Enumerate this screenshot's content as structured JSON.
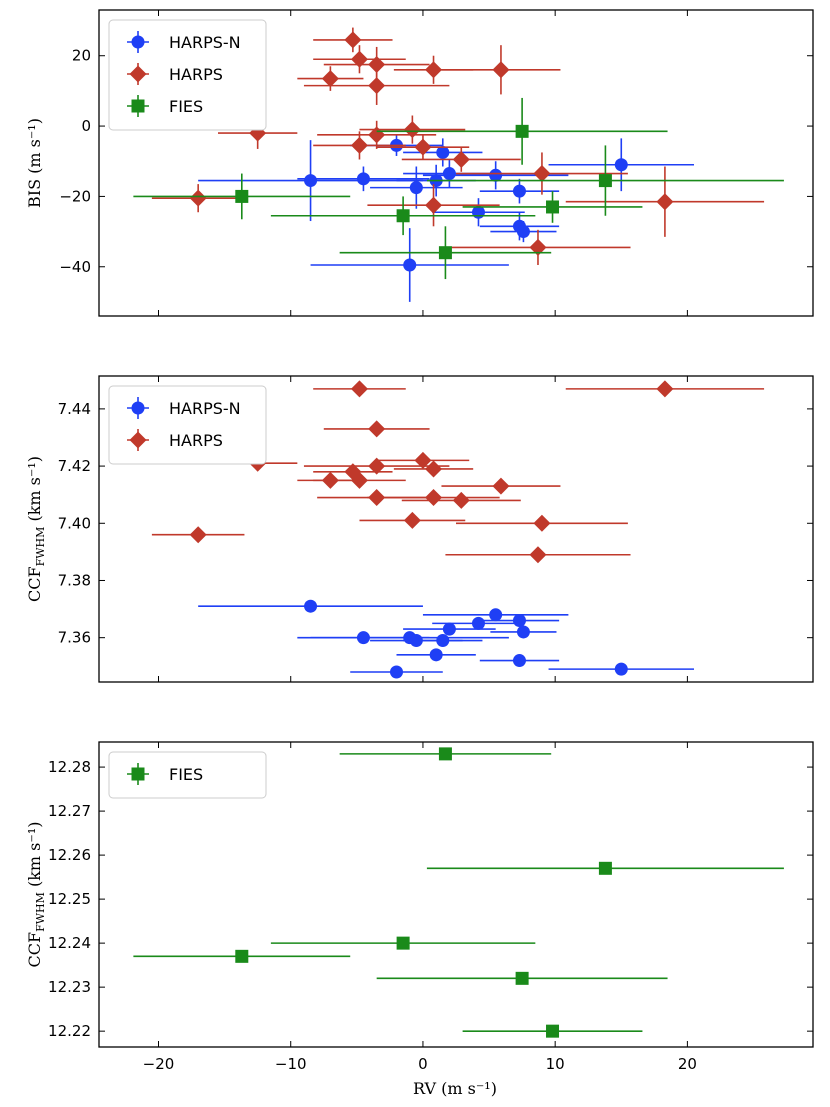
{
  "figure": {
    "xlabel": "RV (m s⁻¹)"
  },
  "colors": {
    "HARPS-N": "#1f3ff5",
    "HARPS": "#c0392b",
    "FIES": "#1a8a1a"
  },
  "chart_data": [
    {
      "type": "scatter",
      "panel": "top",
      "ylabel": "BIS (m s⁻¹)",
      "xlim": [
        -24.5,
        29.5
      ],
      "ylim": [
        -54,
        33
      ],
      "xticks": [
        -20,
        -10,
        0,
        10,
        20
      ],
      "yticks": [
        -40,
        -20,
        0,
        20
      ],
      "legend": {
        "placement": "top-left",
        "entries": [
          "HARPS-N",
          "HARPS",
          "FIES"
        ]
      },
      "series": [
        {
          "name": "HARPS-N",
          "marker": "circle",
          "points": [
            {
              "x": -8.5,
              "y": -15.5,
              "xerr": 8.5,
              "yerr": 11.5
            },
            {
              "x": -4.5,
              "y": -15.0,
              "xerr": 5.0,
              "yerr": 3.5
            },
            {
              "x": -2.0,
              "y": -5.5,
              "xerr": 3.5,
              "yerr": 3.0
            },
            {
              "x": -1.0,
              "y": -39.5,
              "xerr": 7.5,
              "yerr": 10.5
            },
            {
              "x": -0.5,
              "y": -17.5,
              "xerr": 3.5,
              "yerr": 6.0
            },
            {
              "x": 1.0,
              "y": -15.5,
              "xerr": 3.0,
              "yerr": 4.5
            },
            {
              "x": 1.5,
              "y": -7.5,
              "xerr": 3.0,
              "yerr": 4.0
            },
            {
              "x": 2.0,
              "y": -13.5,
              "xerr": 3.5,
              "yerr": 4.0
            },
            {
              "x": 4.2,
              "y": -24.5,
              "xerr": 3.5,
              "yerr": 4.0
            },
            {
              "x": 5.5,
              "y": -14.0,
              "xerr": 5.5,
              "yerr": 4.0
            },
            {
              "x": 7.3,
              "y": -18.5,
              "xerr": 3.0,
              "yerr": 3.5
            },
            {
              "x": 7.3,
              "y": -28.5,
              "xerr": 3.0,
              "yerr": 4.0
            },
            {
              "x": 7.6,
              "y": -30.0,
              "xerr": 2.5,
              "yerr": 3.0
            },
            {
              "x": 15.0,
              "y": -11.0,
              "xerr": 5.5,
              "yerr": 7.5
            }
          ]
        },
        {
          "name": "HARPS",
          "marker": "diamond",
          "points": [
            {
              "x": -17.0,
              "y": -20.5,
              "xerr": 3.5,
              "yerr": 4.0
            },
            {
              "x": -12.5,
              "y": -2.0,
              "xerr": 3.0,
              "yerr": 4.5
            },
            {
              "x": -7.0,
              "y": 13.5,
              "xerr": 2.5,
              "yerr": 3.5
            },
            {
              "x": -5.3,
              "y": 24.5,
              "xerr": 3.0,
              "yerr": 3.5
            },
            {
              "x": -4.8,
              "y": 19.0,
              "xerr": 3.5,
              "yerr": 4.0
            },
            {
              "x": -4.8,
              "y": -5.5,
              "xerr": 3.5,
              "yerr": 4.0
            },
            {
              "x": -3.5,
              "y": 17.5,
              "xerr": 4.0,
              "yerr": 5.0
            },
            {
              "x": -3.5,
              "y": 11.5,
              "xerr": 5.5,
              "yerr": 5.5
            },
            {
              "x": -3.5,
              "y": -2.5,
              "xerr": 4.5,
              "yerr": 4.0
            },
            {
              "x": -0.8,
              "y": -1.0,
              "xerr": 4.0,
              "yerr": 4.0
            },
            {
              "x": 0.0,
              "y": -6.0,
              "xerr": 3.5,
              "yerr": 3.5
            },
            {
              "x": 0.8,
              "y": 16.0,
              "xerr": 3.0,
              "yerr": 4.0
            },
            {
              "x": 0.8,
              "y": -22.5,
              "xerr": 5.0,
              "yerr": 6.0
            },
            {
              "x": 2.9,
              "y": -9.5,
              "xerr": 4.5,
              "yerr": 3.5
            },
            {
              "x": 5.9,
              "y": 16.0,
              "xerr": 4.5,
              "yerr": 7.0
            },
            {
              "x": 8.7,
              "y": -34.5,
              "xerr": 7.0,
              "yerr": 5.0
            },
            {
              "x": 9.0,
              "y": -13.5,
              "xerr": 6.5,
              "yerr": 6.0
            },
            {
              "x": 18.3,
              "y": -21.5,
              "xerr": 7.5,
              "yerr": 10.0
            }
          ]
        },
        {
          "name": "FIES",
          "marker": "square",
          "points": [
            {
              "x": -13.7,
              "y": -20.0,
              "xerr": 8.2,
              "yerr": 6.5
            },
            {
              "x": -1.5,
              "y": -25.5,
              "xerr": 10.0,
              "yerr": 5.5
            },
            {
              "x": 1.7,
              "y": -36.0,
              "xerr": 8.0,
              "yerr": 7.5
            },
            {
              "x": 7.5,
              "y": -1.5,
              "xerr": 11.0,
              "yerr": 9.5
            },
            {
              "x": 9.8,
              "y": -23.0,
              "xerr": 6.8,
              "yerr": 4.5
            },
            {
              "x": 13.8,
              "y": -15.5,
              "xerr": 13.5,
              "yerr": 10.0
            }
          ]
        }
      ]
    },
    {
      "type": "scatter",
      "panel": "middle",
      "ylabel": "CCF",
      "ylabel_sub": "FWHM",
      "ylabel_unit": "(km s⁻¹)",
      "xlim": [
        -24.5,
        29.5
      ],
      "ylim": [
        7.3445,
        7.4515
      ],
      "xticks": [
        -20,
        -10,
        0,
        10,
        20
      ],
      "yticks": [
        7.36,
        7.38,
        7.4,
        7.42,
        7.44
      ],
      "legend": {
        "placement": "top-left",
        "entries": [
          "HARPS-N",
          "HARPS"
        ]
      },
      "series": [
        {
          "name": "HARPS-N",
          "marker": "circle",
          "points": [
            {
              "x": -8.5,
              "y": 7.371,
              "xerr": 8.5
            },
            {
              "x": -4.5,
              "y": 7.36,
              "xerr": 5.0
            },
            {
              "x": -2.0,
              "y": 7.348,
              "xerr": 3.5
            },
            {
              "x": -1.0,
              "y": 7.36,
              "xerr": 7.5
            },
            {
              "x": -0.5,
              "y": 7.359,
              "xerr": 3.5
            },
            {
              "x": 1.0,
              "y": 7.354,
              "xerr": 3.0
            },
            {
              "x": 1.5,
              "y": 7.359,
              "xerr": 3.0
            },
            {
              "x": 2.0,
              "y": 7.363,
              "xerr": 3.5
            },
            {
              "x": 4.2,
              "y": 7.365,
              "xerr": 3.5
            },
            {
              "x": 5.5,
              "y": 7.368,
              "xerr": 5.5
            },
            {
              "x": 7.3,
              "y": 7.366,
              "xerr": 3.0
            },
            {
              "x": 7.3,
              "y": 7.352,
              "xerr": 3.0
            },
            {
              "x": 7.6,
              "y": 7.362,
              "xerr": 2.5
            },
            {
              "x": 15.0,
              "y": 7.349,
              "xerr": 5.5
            }
          ]
        },
        {
          "name": "HARPS",
          "marker": "diamond",
          "points": [
            {
              "x": -17.0,
              "y": 7.396,
              "xerr": 3.5
            },
            {
              "x": -12.5,
              "y": 7.421,
              "xerr": 3.0
            },
            {
              "x": -7.0,
              "y": 7.415,
              "xerr": 2.5
            },
            {
              "x": -5.3,
              "y": 7.418,
              "xerr": 3.0
            },
            {
              "x": -4.8,
              "y": 7.447,
              "xerr": 3.5
            },
            {
              "x": -4.8,
              "y": 7.415,
              "xerr": 3.5
            },
            {
              "x": -3.5,
              "y": 7.433,
              "xerr": 4.0
            },
            {
              "x": -3.5,
              "y": 7.42,
              "xerr": 5.5
            },
            {
              "x": -3.5,
              "y": 7.409,
              "xerr": 4.5
            },
            {
              "x": -0.8,
              "y": 7.401,
              "xerr": 4.0
            },
            {
              "x": 0.0,
              "y": 7.422,
              "xerr": 3.5
            },
            {
              "x": 0.8,
              "y": 7.419,
              "xerr": 3.0
            },
            {
              "x": 0.8,
              "y": 7.409,
              "xerr": 5.0
            },
            {
              "x": 2.9,
              "y": 7.408,
              "xerr": 4.5
            },
            {
              "x": 5.9,
              "y": 7.413,
              "xerr": 4.5
            },
            {
              "x": 8.7,
              "y": 7.389,
              "xerr": 7.0
            },
            {
              "x": 9.0,
              "y": 7.4,
              "xerr": 6.5
            },
            {
              "x": 18.3,
              "y": 7.447,
              "xerr": 7.5
            }
          ]
        }
      ]
    },
    {
      "type": "scatter",
      "panel": "bottom",
      "ylabel": "CCF",
      "ylabel_sub": "FWHM",
      "ylabel_unit": "(km s⁻¹)",
      "xlim": [
        -24.5,
        29.5
      ],
      "ylim": [
        12.2164,
        12.2857
      ],
      "xticks": [
        -20,
        -10,
        0,
        10,
        20
      ],
      "yticks": [
        12.22,
        12.23,
        12.24,
        12.25,
        12.26,
        12.27,
        12.28
      ],
      "legend": {
        "placement": "top-left",
        "entries": [
          "FIES"
        ]
      },
      "series": [
        {
          "name": "FIES",
          "marker": "square",
          "points": [
            {
              "x": -13.7,
              "y": 12.237,
              "xerr": 8.2
            },
            {
              "x": -1.5,
              "y": 12.24,
              "xerr": 10.0
            },
            {
              "x": 1.7,
              "y": 12.283,
              "xerr": 8.0
            },
            {
              "x": 7.5,
              "y": 12.232,
              "xerr": 11.0
            },
            {
              "x": 9.8,
              "y": 12.22,
              "xerr": 6.8
            },
            {
              "x": 13.8,
              "y": 12.257,
              "xerr": 13.5
            }
          ]
        }
      ]
    }
  ]
}
